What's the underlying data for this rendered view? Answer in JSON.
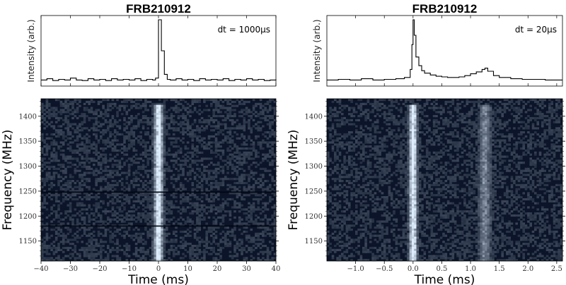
{
  "chart_data": [
    {
      "type": "line",
      "panel": "left",
      "title": "FRB210912",
      "annotation": "dt = 1000μs",
      "profile": {
        "ylabel": "Intensity (arb.)",
        "x": [
          -40,
          -38,
          -36,
          -34,
          -32,
          -30,
          -28,
          -26,
          -24,
          -22,
          -20,
          -18,
          -16,
          -14,
          -12,
          -10,
          -8,
          -6,
          -4,
          -2,
          -1,
          0,
          1,
          2,
          3,
          4,
          6,
          8,
          10,
          12,
          14,
          16,
          18,
          20,
          22,
          24,
          26,
          28,
          30,
          32,
          34,
          36,
          38,
          40
        ],
        "y": [
          0.03,
          0.05,
          0.02,
          0.04,
          0.03,
          0.06,
          0.03,
          0.02,
          0.05,
          0.03,
          0.04,
          0.02,
          0.05,
          0.03,
          0.04,
          0.03,
          0.05,
          0.02,
          0.04,
          0.03,
          0.06,
          1.0,
          0.5,
          0.12,
          0.04,
          0.03,
          0.05,
          0.03,
          0.04,
          0.02,
          0.05,
          0.03,
          0.04,
          0.03,
          0.05,
          0.02,
          0.04,
          0.03,
          0.05,
          0.03,
          0.04,
          0.02,
          0.03,
          0.04
        ],
        "xlim": [
          -40,
          40
        ],
        "ylim": [
          0,
          1.0
        ]
      },
      "waterfall": {
        "type": "heatmap",
        "xlabel": "Time (ms)",
        "ylabel": "Frequency (MHz)",
        "xlim": [
          -40,
          40
        ],
        "ylim": [
          1110,
          1435
        ],
        "x_ticks": [
          "−40",
          "−30",
          "−20",
          "−10",
          "0",
          "10",
          "20",
          "30",
          "40"
        ],
        "y_ticks": [
          "1150",
          "1200",
          "1250",
          "1300",
          "1350",
          "1400"
        ],
        "burst_components": [
          {
            "time": 0.0,
            "width": 2.0,
            "freq_top": 1420,
            "freq_bottom": 1110,
            "strength": 1.0
          }
        ],
        "flagged_channels": [
          1248,
          1180
        ]
      }
    },
    {
      "type": "line",
      "panel": "right",
      "title": "FRB210912",
      "annotation": "dt = 20μs",
      "profile": {
        "ylabel": "Intensity (arb.)",
        "x": [
          -1.5,
          -1.3,
          -1.1,
          -0.9,
          -0.7,
          -0.5,
          -0.3,
          -0.15,
          -0.05,
          -0.02,
          0.0,
          0.02,
          0.05,
          0.1,
          0.15,
          0.2,
          0.3,
          0.4,
          0.5,
          0.6,
          0.7,
          0.8,
          0.9,
          1.0,
          1.1,
          1.2,
          1.25,
          1.3,
          1.4,
          1.5,
          1.7,
          1.9,
          2.1,
          2.3,
          2.55
        ],
        "y": [
          0.03,
          0.04,
          0.03,
          0.05,
          0.03,
          0.04,
          0.05,
          0.07,
          0.2,
          0.6,
          1.0,
          0.75,
          0.4,
          0.26,
          0.18,
          0.14,
          0.11,
          0.09,
          0.08,
          0.07,
          0.07,
          0.08,
          0.1,
          0.13,
          0.16,
          0.2,
          0.22,
          0.17,
          0.1,
          0.07,
          0.05,
          0.04,
          0.04,
          0.03,
          0.03
        ],
        "xlim": [
          -1.5,
          2.6
        ],
        "ylim": [
          0,
          1.0
        ]
      },
      "waterfall": {
        "type": "heatmap",
        "xlabel": "Time (ms)",
        "ylabel": "Frequency (MHz)",
        "xlim": [
          -1.5,
          2.6
        ],
        "ylim": [
          1110,
          1435
        ],
        "x_ticks": [
          "−1.0",
          "−0.5",
          "0.0",
          "0.5",
          "1.0",
          "1.5",
          "2.0",
          "2.5"
        ],
        "y_ticks": [
          "1150",
          "1200",
          "1250",
          "1300",
          "1350",
          "1400"
        ],
        "burst_components": [
          {
            "time": 0.0,
            "width": 0.09,
            "freq_top": 1420,
            "freq_bottom": 1110,
            "strength": 1.0
          },
          {
            "time": 1.25,
            "width": 0.14,
            "freq_top": 1420,
            "freq_bottom": 1110,
            "strength": 0.4
          }
        ],
        "flagged_channels": []
      }
    }
  ]
}
